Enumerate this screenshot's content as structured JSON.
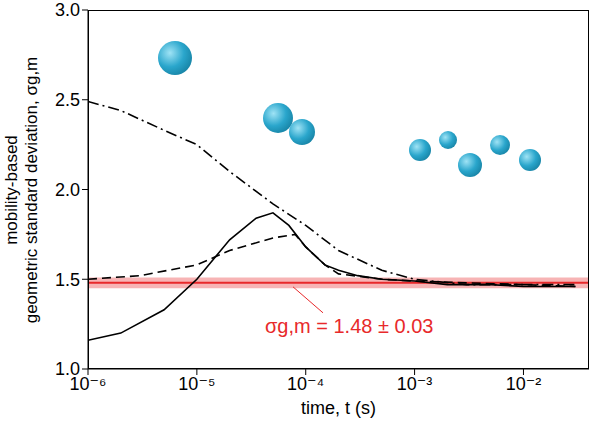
{
  "chart_data": {
    "type": "line",
    "x_label": "time, t (s)",
    "y_label": "mobility-based geometric standard deviation, σg,m",
    "log": "x",
    "grid": false,
    "xlim": [
      1e-06,
      0.04
    ],
    "xticks": [
      {
        "value": 1e-06,
        "label": "10⁻⁶"
      },
      {
        "value": 1e-05,
        "label": "10⁻⁵"
      },
      {
        "value": 0.0001,
        "label": "10⁻⁴"
      },
      {
        "value": 0.001,
        "label": "10⁻³"
      },
      {
        "value": 0.01,
        "label": "10⁻²"
      }
    ],
    "ylim": [
      1.0,
      3.0
    ],
    "yticks": [
      {
        "value": 1.0,
        "label": "1.0"
      },
      {
        "value": 1.5,
        "label": "1.5"
      },
      {
        "value": 2.0,
        "label": "2.0"
      },
      {
        "value": 2.5,
        "label": "2.5"
      },
      {
        "value": 3.0,
        "label": "3.0"
      }
    ],
    "series": [
      {
        "color": "#000000",
        "line_style": "solid",
        "x": [
          1e-06,
          2e-06,
          5e-06,
          1e-05,
          2e-05,
          3.5e-05,
          5e-05,
          7e-05,
          0.0001,
          0.00015,
          0.0002,
          0.0003,
          0.0005,
          0.001,
          0.002,
          0.005,
          0.01,
          0.03
        ],
        "values": [
          1.16,
          1.2,
          1.33,
          1.5,
          1.72,
          1.84,
          1.87,
          1.8,
          1.68,
          1.58,
          1.55,
          1.52,
          1.5,
          1.49,
          1.47,
          1.47,
          1.46,
          1.46
        ]
      },
      {
        "color": "#000000",
        "line_style": "dashed",
        "x": [
          1e-06,
          3e-06,
          1e-05,
          2e-05,
          5e-05,
          8e-05,
          0.0001,
          0.00015,
          0.0002,
          0.0005,
          0.001,
          0.003,
          0.01,
          0.03
        ],
        "values": [
          1.5,
          1.52,
          1.58,
          1.66,
          1.73,
          1.75,
          1.68,
          1.58,
          1.53,
          1.5,
          1.49,
          1.48,
          1.47,
          1.46
        ]
      },
      {
        "color": "#000000",
        "line_style": "dashdot",
        "x": [
          1e-06,
          2e-06,
          5e-06,
          1e-05,
          2e-05,
          5e-05,
          0.0001,
          0.0002,
          0.0005,
          0.001,
          0.003,
          0.01,
          0.03
        ],
        "values": [
          2.49,
          2.44,
          2.33,
          2.25,
          2.1,
          1.92,
          1.8,
          1.66,
          1.55,
          1.5,
          1.47,
          1.47,
          1.47
        ]
      }
    ],
    "reference": {
      "value": 1.48,
      "error": 0.03,
      "color": "#e8292b",
      "label": "σg,m = 1.48 ± 0.03"
    }
  }
}
